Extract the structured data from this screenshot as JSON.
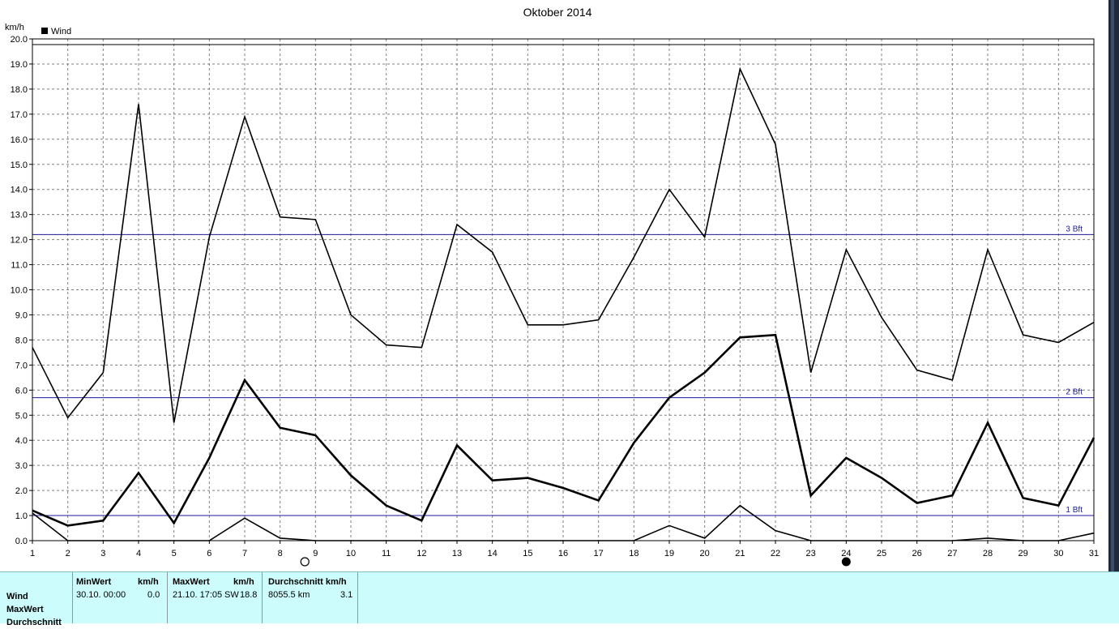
{
  "chart_data": {
    "type": "line",
    "title": "Oktober 2014",
    "ylabel": "km/h",
    "ylim": [
      0,
      20
    ],
    "yticks": [
      "0.0",
      "1.0",
      "2.0",
      "3.0",
      "4.0",
      "5.0",
      "6.0",
      "7.0",
      "8.0",
      "9.0",
      "10.0",
      "11.0",
      "12.0",
      "13.0",
      "14.0",
      "15.0",
      "16.0",
      "17.0",
      "18.0",
      "19.0",
      "20.0"
    ],
    "x": [
      1,
      2,
      3,
      4,
      5,
      6,
      7,
      8,
      9,
      10,
      11,
      12,
      13,
      14,
      15,
      16,
      17,
      18,
      19,
      20,
      21,
      22,
      23,
      24,
      25,
      26,
      27,
      28,
      29,
      30,
      31
    ],
    "legend": "Wind",
    "legend_position": "top-left",
    "grid": true,
    "series": [
      {
        "values": [
          7.7,
          4.9,
          6.7,
          17.4,
          4.7,
          12.1,
          16.9,
          12.9,
          12.8,
          9.0,
          7.8,
          7.7,
          12.6,
          11.5,
          8.6,
          8.6,
          8.8,
          11.3,
          14.0,
          12.1,
          18.8,
          15.8,
          6.7,
          11.6,
          8.9,
          6.8,
          6.4,
          11.6,
          8.2,
          7.9,
          8.7
        ]
      },
      {
        "values": [
          1.2,
          0.6,
          0.8,
          2.7,
          0.7,
          3.3,
          6.4,
          4.5,
          4.2,
          2.6,
          1.4,
          0.8,
          3.8,
          2.4,
          2.5,
          2.1,
          1.6,
          3.9,
          5.7,
          6.7,
          8.1,
          8.2,
          1.8,
          3.3,
          2.5,
          1.5,
          1.8,
          4.7,
          1.7,
          1.4,
          4.1
        ]
      },
      {
        "values": [
          1.1,
          0.0,
          0.0,
          0.0,
          0.0,
          0.0,
          0.9,
          0.1,
          0.0,
          0.0,
          0.0,
          0.0,
          0.0,
          0.0,
          0.0,
          0.0,
          0.0,
          0.0,
          0.6,
          0.1,
          1.4,
          0.4,
          0.0,
          0.0,
          0.0,
          0.0,
          0.0,
          0.1,
          0.0,
          0.0,
          0.3
        ]
      }
    ],
    "reference_lines": [
      {
        "label": "1 Bft",
        "value": 1.0
      },
      {
        "label": "2 Bft",
        "value": 5.7
      },
      {
        "label": "3 Bft",
        "value": 12.2
      }
    ],
    "moon_phases": [
      {
        "day": 8.7,
        "phase": "full"
      },
      {
        "day": 24,
        "phase": "new"
      }
    ],
    "colors": {
      "series": "#000000",
      "reference": "#1a1a9c",
      "grid": "#7f7f7f"
    }
  },
  "stats": {
    "rows": [
      "Wind",
      "MaxWert",
      "Durchschnitt"
    ],
    "minwert": {
      "header": "MinWert",
      "unit": "km/h",
      "date": "30.10.  00:00",
      "value": "0.0"
    },
    "maxwert": {
      "header": "MaxWert",
      "unit": "km/h",
      "date": "21.10.  17:05",
      "dir": "SW",
      "value": "18.8"
    },
    "durchschnitt": {
      "header": "Durchschnitt km/h",
      "distance": "8055.5 km",
      "value": "3.1"
    }
  }
}
